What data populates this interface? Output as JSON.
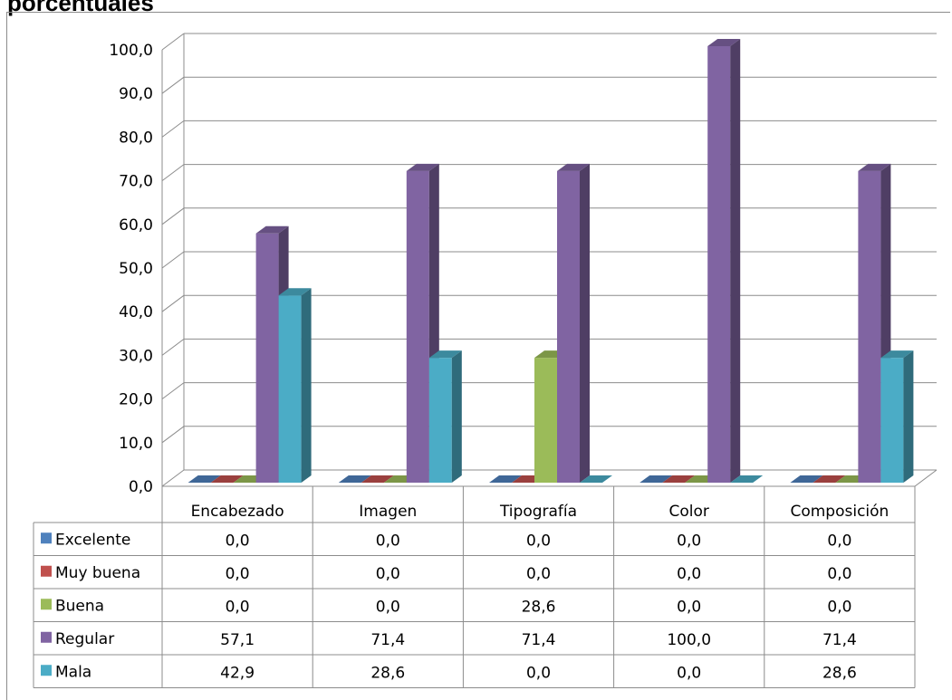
{
  "title": "porcentuales",
  "chart_data": {
    "type": "bar",
    "title": "porcentuales",
    "categories": [
      "Encabezado",
      "Imagen",
      "Tipografía",
      "Color",
      "Composición"
    ],
    "series": [
      {
        "name": "Excelente",
        "color": "#4F81BD",
        "values": [
          0.0,
          0.0,
          0.0,
          0.0,
          0.0
        ],
        "labels": [
          "0,0",
          "0,0",
          "0,0",
          "0,0",
          "0,0"
        ]
      },
      {
        "name": "Muy buena",
        "color": "#C0504D",
        "values": [
          0.0,
          0.0,
          0.0,
          0.0,
          0.0
        ],
        "labels": [
          "0,0",
          "0,0",
          "0,0",
          "0,0",
          "0,0"
        ]
      },
      {
        "name": "Buena",
        "color": "#9BBB59",
        "values": [
          0.0,
          0.0,
          28.6,
          0.0,
          0.0
        ],
        "labels": [
          "0,0",
          "0,0",
          "28,6",
          "0,0",
          "0,0"
        ]
      },
      {
        "name": "Regular",
        "color": "#8064A2",
        "values": [
          57.1,
          71.4,
          71.4,
          100.0,
          71.4
        ],
        "labels": [
          "57,1",
          "71,4",
          "71,4",
          "100,0",
          "71,4"
        ]
      },
      {
        "name": "Mala",
        "color": "#4BACC6",
        "values": [
          42.9,
          28.6,
          0.0,
          0.0,
          28.6
        ],
        "labels": [
          "42,9",
          "28,6",
          "0,0",
          "0,0",
          "28,6"
        ]
      }
    ],
    "ylim": [
      0,
      100
    ],
    "yticks": [
      "0,0",
      "10,0",
      "20,0",
      "30,0",
      "40,0",
      "50,0",
      "60,0",
      "70,0",
      "80,0",
      "90,0",
      "100,0"
    ],
    "grid": true,
    "data_table": true,
    "bars_3d": true
  }
}
